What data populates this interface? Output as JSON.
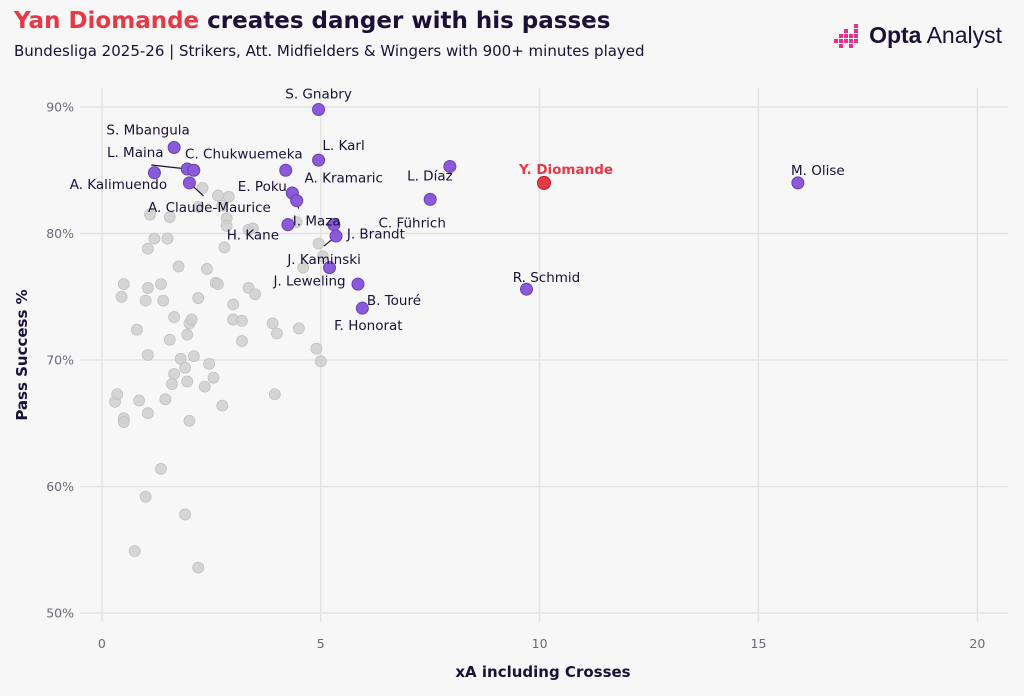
{
  "header": {
    "title_highlight": "Yan Diomande",
    "title_rest": " creates danger with his passes",
    "subtitle": "Bundesliga 2025-26 | Strikers, Att. Midfielders & Wingers with 900+ minutes played"
  },
  "brand": {
    "name_bold": "Opta",
    "name_rest": " Analyst",
    "logo_icon": "opta-bars-icon"
  },
  "colors": {
    "highlight": "#e63946",
    "labelled": "#8b5ad8",
    "other": "#cfcfcf",
    "text": "#1a1038"
  },
  "chart_data": {
    "type": "scatter",
    "title": "Yan Diomande creates danger with his passes",
    "subtitle": "Bundesliga 2025-26 | Strikers, Att. Midfielders & Wingers with 900+ minutes played",
    "xlabel": "xA including Crosses",
    "ylabel": "Pass Success %",
    "xlim": [
      -0.5,
      20.7
    ],
    "ylim": [
      49.3,
      91.5
    ],
    "xticks": [
      0,
      5,
      10,
      15,
      20
    ],
    "yticks": [
      50,
      60,
      70,
      80,
      90
    ],
    "ytick_labels": [
      "50%",
      "60%",
      "70%",
      "80%",
      "90%"
    ],
    "grid": true,
    "highlight": {
      "name": "Y. Diomande",
      "x": 10.1,
      "y": 84.0
    },
    "labelled": [
      {
        "name": "M. Olise",
        "x": 15.9,
        "y": 84.0
      },
      {
        "name": "S. Gnabry",
        "x": 4.95,
        "y": 89.8
      },
      {
        "name": "S. Mbangula",
        "x": 1.65,
        "y": 86.8
      },
      {
        "name": "L. Karl",
        "x": 4.95,
        "y": 85.8
      },
      {
        "name": "L. Maina",
        "x": 1.95,
        "y": 85.1
      },
      {
        "name": "C. Chukwuemeka",
        "x": 2.1,
        "y": 85.0
      },
      {
        "name": "A. Kalimuendo",
        "x": 1.2,
        "y": 84.8
      },
      {
        "name": "A. Kramaric",
        "x": 4.2,
        "y": 85.0
      },
      {
        "name": "L. Díaz",
        "x": 7.95,
        "y": 85.3
      },
      {
        "name": "A. Claude-Maurice",
        "x": 2.0,
        "y": 84.0
      },
      {
        "name": "E. Poku",
        "x": 4.35,
        "y": 83.2
      },
      {
        "name": "I. Maza",
        "x": 4.45,
        "y": 82.6
      },
      {
        "name": "C. Führich",
        "x": 7.5,
        "y": 82.7
      },
      {
        "name": "H. Kane",
        "x": 4.25,
        "y": 80.7
      },
      {
        "name": "J. Brandt",
        "x": 5.3,
        "y": 80.7
      },
      {
        "name": "J. Kaminski",
        "x": 5.35,
        "y": 79.8
      },
      {
        "name": "J. Leweling",
        "x": 5.2,
        "y": 77.3
      },
      {
        "name": "B. Touré",
        "x": 5.85,
        "y": 76.0
      },
      {
        "name": "R. Schmid",
        "x": 9.7,
        "y": 75.6
      },
      {
        "name": "F. Honorat",
        "x": 5.95,
        "y": 74.1
      }
    ],
    "others": [
      [
        0.3,
        66.7
      ],
      [
        0.35,
        67.3
      ],
      [
        0.5,
        65.4
      ],
      [
        0.5,
        65.1
      ],
      [
        0.5,
        76.0
      ],
      [
        0.45,
        75.0
      ],
      [
        0.75,
        54.9
      ],
      [
        0.8,
        72.4
      ],
      [
        0.85,
        66.8
      ],
      [
        1.0,
        59.2
      ],
      [
        1.05,
        65.8
      ],
      [
        1.05,
        70.4
      ],
      [
        1.0,
        74.7
      ],
      [
        1.05,
        75.7
      ],
      [
        1.05,
        78.8
      ],
      [
        1.1,
        81.5
      ],
      [
        1.2,
        79.6
      ],
      [
        1.35,
        61.4
      ],
      [
        1.35,
        76.0
      ],
      [
        1.4,
        74.7
      ],
      [
        1.45,
        66.9
      ],
      [
        1.5,
        79.6
      ],
      [
        1.55,
        81.3
      ],
      [
        1.6,
        68.1
      ],
      [
        1.55,
        71.6
      ],
      [
        1.65,
        73.4
      ],
      [
        1.65,
        68.9
      ],
      [
        1.75,
        77.4
      ],
      [
        1.8,
        70.1
      ],
      [
        1.9,
        57.8
      ],
      [
        1.9,
        69.4
      ],
      [
        1.95,
        68.3
      ],
      [
        1.95,
        72.0
      ],
      [
        2.0,
        65.2
      ],
      [
        2.0,
        72.9
      ],
      [
        2.05,
        73.2
      ],
      [
        2.1,
        70.3
      ],
      [
        2.2,
        53.6
      ],
      [
        2.2,
        74.9
      ],
      [
        2.2,
        82.1
      ],
      [
        2.3,
        83.6
      ],
      [
        2.35,
        67.9
      ],
      [
        2.45,
        69.7
      ],
      [
        2.4,
        77.2
      ],
      [
        2.55,
        68.6
      ],
      [
        2.6,
        76.1
      ],
      [
        2.65,
        83.0
      ],
      [
        2.65,
        76.0
      ],
      [
        2.75,
        66.4
      ],
      [
        2.75,
        82.2
      ],
      [
        2.85,
        81.2
      ],
      [
        2.8,
        78.9
      ],
      [
        2.85,
        80.6
      ],
      [
        2.9,
        82.9
      ],
      [
        3.0,
        74.4
      ],
      [
        3.0,
        73.2
      ],
      [
        3.2,
        73.1
      ],
      [
        3.2,
        71.5
      ],
      [
        3.35,
        80.3
      ],
      [
        3.35,
        75.7
      ],
      [
        3.45,
        80.4
      ],
      [
        3.5,
        75.2
      ],
      [
        3.9,
        72.9
      ],
      [
        3.95,
        67.3
      ],
      [
        4.0,
        72.1
      ],
      [
        4.5,
        72.5
      ],
      [
        4.6,
        77.3
      ],
      [
        4.9,
        70.9
      ],
      [
        5.0,
        69.9
      ],
      [
        4.95,
        79.2
      ],
      [
        5.05,
        78.2
      ],
      [
        4.45,
        80.9
      ]
    ]
  }
}
